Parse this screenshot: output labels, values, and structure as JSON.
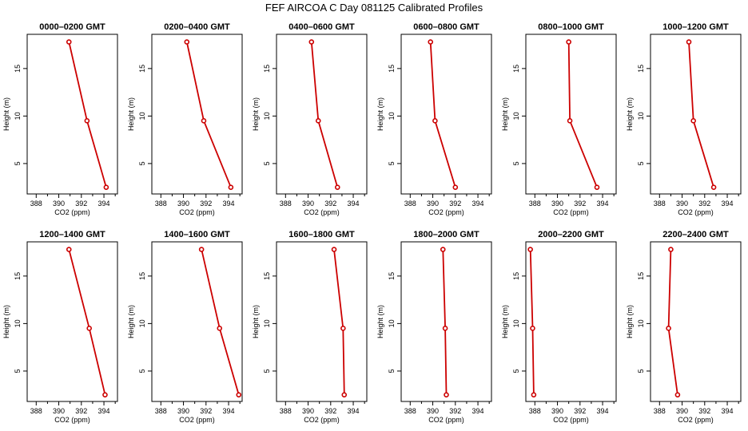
{
  "title": "FEF AIRCOA C  Day 081125  Calibrated Profiles",
  "chart_data": [
    {
      "type": "line",
      "title": "0000–0200 GMT",
      "xlabel": "CO2 (ppm)",
      "ylabel": "Height (m)",
      "xlim": [
        387.2,
        395.2
      ],
      "ylim": [
        1.8,
        18.6
      ],
      "xticks": [
        "388",
        "390",
        "392",
        "394"
      ],
      "yticks": [
        "5",
        "10",
        "15"
      ],
      "color": "#cc0000",
      "points": [
        {
          "x": 394.2,
          "y": 2.5
        },
        {
          "x": 392.5,
          "y": 9.5
        },
        {
          "x": 390.9,
          "y": 17.8
        }
      ]
    },
    {
      "type": "line",
      "title": "0200–0400 GMT",
      "xlabel": "CO2 (ppm)",
      "ylabel": "Height (m)",
      "xlim": [
        387.2,
        395.2
      ],
      "ylim": [
        1.8,
        18.6
      ],
      "xticks": [
        "388",
        "390",
        "392",
        "394"
      ],
      "yticks": [
        "5",
        "10",
        "15"
      ],
      "color": "#cc0000",
      "points": [
        {
          "x": 394.2,
          "y": 2.5
        },
        {
          "x": 391.8,
          "y": 9.5
        },
        {
          "x": 390.3,
          "y": 17.8
        }
      ]
    },
    {
      "type": "line",
      "title": "0400–0600 GMT",
      "xlabel": "CO2 (ppm)",
      "ylabel": "Height (m)",
      "xlim": [
        387.2,
        395.2
      ],
      "ylim": [
        1.8,
        18.6
      ],
      "xticks": [
        "388",
        "390",
        "392",
        "394"
      ],
      "yticks": [
        "5",
        "10",
        "15"
      ],
      "color": "#cc0000",
      "points": [
        {
          "x": 392.6,
          "y": 2.5
        },
        {
          "x": 390.9,
          "y": 9.5
        },
        {
          "x": 390.3,
          "y": 17.8
        }
      ]
    },
    {
      "type": "line",
      "title": "0600–0800 GMT",
      "xlabel": "CO2 (ppm)",
      "ylabel": "Height (m)",
      "xlim": [
        387.2,
        395.2
      ],
      "ylim": [
        1.8,
        18.6
      ],
      "xticks": [
        "388",
        "390",
        "392",
        "394"
      ],
      "yticks": [
        "5",
        "10",
        "15"
      ],
      "color": "#cc0000",
      "points": [
        {
          "x": 392.0,
          "y": 2.5
        },
        {
          "x": 390.2,
          "y": 9.5
        },
        {
          "x": 389.8,
          "y": 17.8
        }
      ]
    },
    {
      "type": "line",
      "title": "0800–1000 GMT",
      "xlabel": "CO2 (ppm)",
      "ylabel": "Height (m)",
      "xlim": [
        387.2,
        395.2
      ],
      "ylim": [
        1.8,
        18.6
      ],
      "xticks": [
        "388",
        "390",
        "392",
        "394"
      ],
      "yticks": [
        "5",
        "10",
        "15"
      ],
      "color": "#cc0000",
      "points": [
        {
          "x": 393.5,
          "y": 2.5
        },
        {
          "x": 391.1,
          "y": 9.5
        },
        {
          "x": 391.0,
          "y": 17.8
        }
      ]
    },
    {
      "type": "line",
      "title": "1000–1200 GMT",
      "xlabel": "CO2 (ppm)",
      "ylabel": "Height (m)",
      "xlim": [
        387.2,
        395.2
      ],
      "ylim": [
        1.8,
        18.6
      ],
      "xticks": [
        "388",
        "390",
        "392",
        "394"
      ],
      "yticks": [
        "5",
        "10",
        "15"
      ],
      "color": "#cc0000",
      "points": [
        {
          "x": 392.8,
          "y": 2.5
        },
        {
          "x": 391.0,
          "y": 9.5
        },
        {
          "x": 390.6,
          "y": 17.8
        }
      ]
    },
    {
      "type": "line",
      "title": "1200–1400 GMT",
      "xlabel": "CO2 (ppm)",
      "ylabel": "Height (m)",
      "xlim": [
        387.2,
        395.2
      ],
      "ylim": [
        1.8,
        18.6
      ],
      "xticks": [
        "388",
        "390",
        "392",
        "394"
      ],
      "yticks": [
        "5",
        "10",
        "15"
      ],
      "color": "#cc0000",
      "points": [
        {
          "x": 394.1,
          "y": 2.5
        },
        {
          "x": 392.7,
          "y": 9.5
        },
        {
          "x": 390.9,
          "y": 17.8
        }
      ]
    },
    {
      "type": "line",
      "title": "1400–1600 GMT",
      "xlabel": "CO2 (ppm)",
      "ylabel": "Height (m)",
      "xlim": [
        387.2,
        395.2
      ],
      "ylim": [
        1.8,
        18.6
      ],
      "xticks": [
        "388",
        "390",
        "392",
        "394"
      ],
      "yticks": [
        "5",
        "10",
        "15"
      ],
      "color": "#cc0000",
      "points": [
        {
          "x": 394.9,
          "y": 2.5
        },
        {
          "x": 393.2,
          "y": 9.5
        },
        {
          "x": 391.6,
          "y": 17.8
        }
      ]
    },
    {
      "type": "line",
      "title": "1600–1800 GMT",
      "xlabel": "CO2 (ppm)",
      "ylabel": "Height (m)",
      "xlim": [
        387.2,
        395.2
      ],
      "ylim": [
        1.8,
        18.6
      ],
      "xticks": [
        "388",
        "390",
        "392",
        "394"
      ],
      "yticks": [
        "5",
        "10",
        "15"
      ],
      "color": "#cc0000",
      "points": [
        {
          "x": 393.2,
          "y": 2.5
        },
        {
          "x": 393.1,
          "y": 9.5
        },
        {
          "x": 392.3,
          "y": 17.8
        }
      ]
    },
    {
      "type": "line",
      "title": "1800–2000 GMT",
      "xlabel": "CO2 (ppm)",
      "ylabel": "Height (m)",
      "xlim": [
        387.2,
        395.2
      ],
      "ylim": [
        1.8,
        18.6
      ],
      "xticks": [
        "388",
        "390",
        "392",
        "394"
      ],
      "yticks": [
        "5",
        "10",
        "15"
      ],
      "color": "#cc0000",
      "points": [
        {
          "x": 391.2,
          "y": 2.5
        },
        {
          "x": 391.1,
          "y": 9.5
        },
        {
          "x": 390.9,
          "y": 17.8
        }
      ]
    },
    {
      "type": "line",
      "title": "2000–2200 GMT",
      "xlabel": "CO2 (ppm)",
      "ylabel": "Height (m)",
      "xlim": [
        387.2,
        395.2
      ],
      "ylim": [
        1.8,
        18.6
      ],
      "xticks": [
        "388",
        "390",
        "392",
        "394"
      ],
      "yticks": [
        "5",
        "10",
        "15"
      ],
      "color": "#cc0000",
      "points": [
        {
          "x": 387.9,
          "y": 2.5
        },
        {
          "x": 387.8,
          "y": 9.5
        },
        {
          "x": 387.6,
          "y": 17.8
        }
      ]
    },
    {
      "type": "line",
      "title": "2200–2400 GMT",
      "xlabel": "CO2 (ppm)",
      "ylabel": "Height (m)",
      "xlim": [
        387.2,
        395.2
      ],
      "ylim": [
        1.8,
        18.6
      ],
      "xticks": [
        "388",
        "390",
        "392",
        "394"
      ],
      "yticks": [
        "5",
        "10",
        "15"
      ],
      "color": "#cc0000",
      "points": [
        {
          "x": 389.6,
          "y": 2.5
        },
        {
          "x": 388.8,
          "y": 9.5
        },
        {
          "x": 389.0,
          "y": 17.8
        }
      ]
    }
  ]
}
